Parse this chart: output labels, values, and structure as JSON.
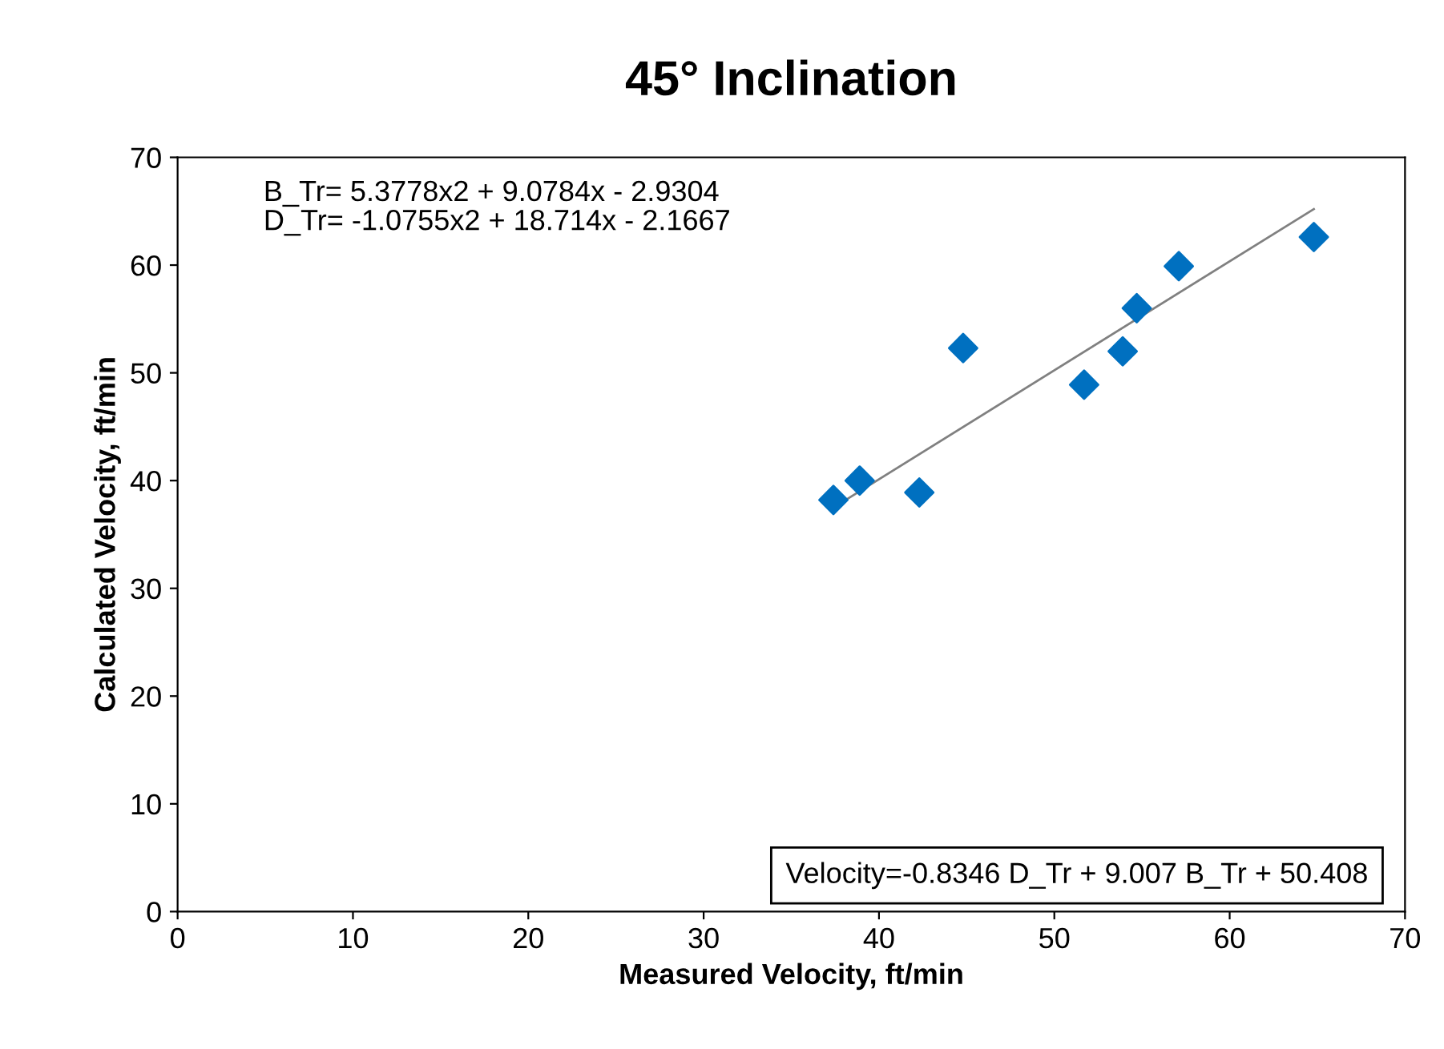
{
  "chart_data": {
    "type": "scatter",
    "title": "45° Inclination",
    "xlabel": "Measured Velocity, ft/min",
    "ylabel": "Calculated Velocity, ft/min",
    "xlim": [
      0,
      70
    ],
    "ylim": [
      0,
      70
    ],
    "xticks": [
      0,
      10,
      20,
      30,
      40,
      50,
      60,
      70
    ],
    "yticks": [
      0,
      10,
      20,
      30,
      40,
      50,
      60,
      70
    ],
    "grid": false,
    "legend": false,
    "marker": "diamond",
    "series": [
      {
        "color": "#0070c0",
        "x": [
          37.4,
          38.9,
          42.3,
          44.8,
          51.7,
          53.9,
          54.7,
          57.1,
          64.8
        ],
        "values": [
          38.2,
          40.0,
          38.9,
          52.3,
          48.9,
          52.0,
          56.0,
          59.9,
          62.6
        ]
      },
      {
        "type": "line",
        "color": "#808080",
        "marker": "none",
        "x": [
          38.1,
          64.8
        ],
        "values": [
          38.2,
          65.2
        ]
      }
    ],
    "annotations": [
      "B_Tr= 5.3778x2 + 9.0784x - 2.9304\nD_Tr= -1.0755x2 + 18.714x - 2.1667",
      "Velocity=-0.8346 D_Tr + 9.007 B_Tr + 50.408"
    ]
  }
}
